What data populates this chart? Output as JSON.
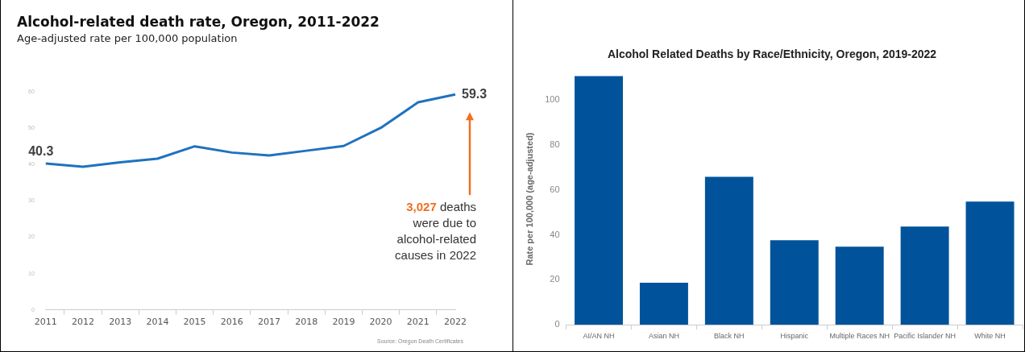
{
  "chart_data": [
    {
      "type": "line",
      "title": "Alcohol-related death rate, Oregon, 2011-2022",
      "subtitle": "Age-adjusted rate per 100,000 population",
      "categories": [
        "2011",
        "2012",
        "2013",
        "2014",
        "2015",
        "2016",
        "2017",
        "2018",
        "2019",
        "2020",
        "2021",
        "2022"
      ],
      "values": [
        40.3,
        39.4,
        40.6,
        41.6,
        45.0,
        43.3,
        42.5,
        43.8,
        45.1,
        50.1,
        57.1,
        59.3
      ],
      "value_labels": [
        "40.3",
        null,
        null,
        null,
        null,
        null,
        null,
        null,
        null,
        null,
        null,
        "59.3"
      ],
      "color": "#1f72bf",
      "ylim": [
        0,
        60
      ],
      "yticks": [
        0,
        10,
        20,
        30,
        40,
        50,
        60
      ],
      "grid": false,
      "legend": false,
      "marker": "none",
      "annotations": [
        "3,027 deaths were due to alcohol-related causes in 2022",
        "Source: Oregon Death Certificates"
      ]
    },
    {
      "type": "bar",
      "title": "Alcohol Related Deaths by Race/Ethnicity, Oregon, 2019-2022",
      "ylabel": "Rate per 100,000 (age-adjusted)",
      "categories": [
        "AI/AN NH",
        "Asian NH",
        "Black NH",
        "Hispanic",
        "Multiple Races NH",
        "Pacific Islander NH",
        "White NH"
      ],
      "values": [
        110.7,
        18.7,
        65.9,
        37.6,
        34.8,
        43.7,
        54.8
      ],
      "color": "#00539b",
      "ylim": [
        0,
        112
      ],
      "yticks": [
        0,
        20,
        40,
        60,
        80,
        100
      ],
      "grid": false,
      "legend": false
    }
  ]
}
